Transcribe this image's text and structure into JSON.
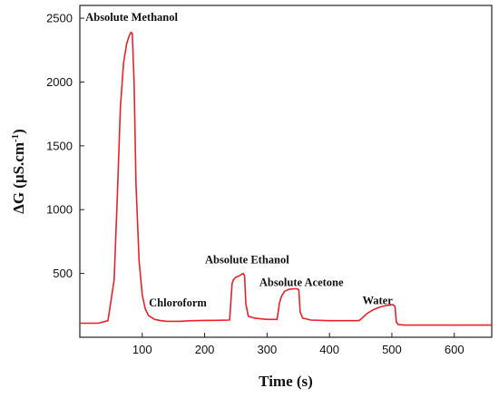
{
  "chart_data": {
    "type": "line",
    "xlabel": "Time (s)",
    "ylabel_prefix": "ΔG (μS.cm",
    "ylabel_sup": "-1",
    "ylabel_suffix": ")",
    "xlim": [
      0,
      660
    ],
    "ylim": [
      0,
      2600
    ],
    "xticks": [
      100,
      200,
      300,
      400,
      500,
      600
    ],
    "yticks": [
      500,
      1000,
      1500,
      2000,
      2500
    ],
    "grid": false,
    "legend": "none",
    "line_color": "#e8212a",
    "series": [
      {
        "x": [
          0,
          30,
          45,
          55,
          60,
          65,
          70,
          75,
          79,
          82,
          84,
          87,
          90,
          95,
          100,
          105,
          110,
          120,
          130,
          140,
          160,
          180,
          200,
          220,
          240,
          244,
          246,
          250,
          255,
          258,
          262,
          264,
          266,
          270,
          280,
          300,
          316,
          320,
          323,
          328,
          335,
          343,
          348,
          351,
          353,
          357,
          370,
          400,
          447,
          450,
          460,
          470,
          480,
          490,
          498,
          502,
          505,
          507,
          510,
          520,
          560,
          620,
          660
        ],
        "y": [
          110,
          110,
          130,
          450,
          1100,
          1800,
          2150,
          2300,
          2360,
          2390,
          2380,
          2000,
          1200,
          600,
          330,
          220,
          170,
          140,
          130,
          125,
          125,
          130,
          132,
          133,
          135,
          420,
          450,
          470,
          480,
          490,
          500,
          480,
          260,
          165,
          150,
          140,
          140,
          270,
          320,
          360,
          375,
          380,
          380,
          370,
          200,
          150,
          135,
          130,
          130,
          140,
          185,
          215,
          235,
          248,
          253,
          255,
          240,
          120,
          100,
          95,
          95,
          95,
          95
        ]
      }
    ],
    "annotations": [
      {
        "text": "Absolute Methanol",
        "x": 83,
        "y": 2480
      },
      {
        "text": "Chloroform",
        "x": 157,
        "y": 240
      },
      {
        "text": "Absolute Ethanol",
        "x": 268,
        "y": 580
      },
      {
        "text": "Absolute Acetone",
        "x": 355,
        "y": 400
      },
      {
        "text": "Water",
        "x": 477,
        "y": 260
      }
    ]
  }
}
